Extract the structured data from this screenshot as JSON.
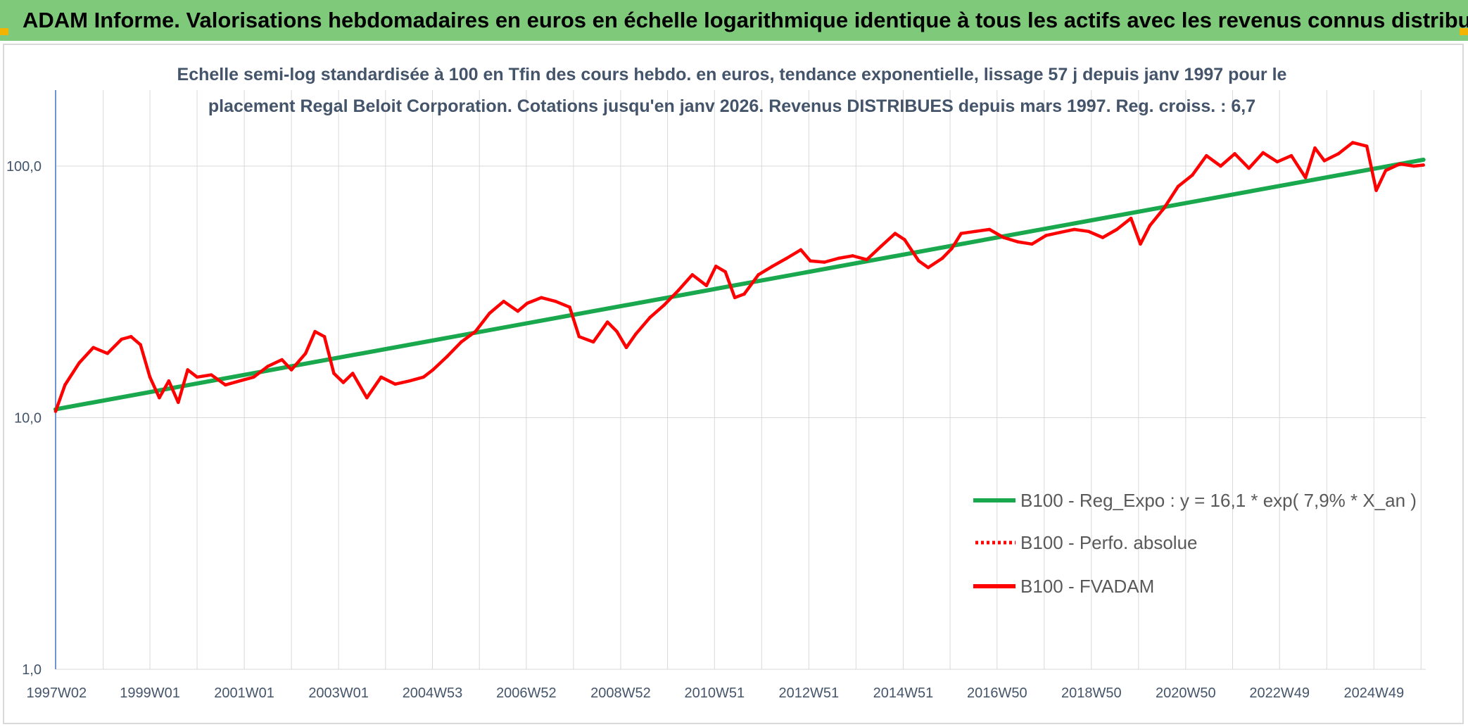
{
  "banner": {
    "title": "ADAM Informe. Valorisations hebdomadaires en euros en échelle logarithmique identique à tous les actifs avec les revenus connus distribués"
  },
  "colors": {
    "banner_bg": "#7fc97a",
    "trend": "#1aa84e",
    "series": "#ff0000",
    "grid": "#d9d9d9",
    "text": "#44546a",
    "corner": "#f2b400"
  },
  "chart_data": {
    "type": "line",
    "title": "",
    "subtitle_lines": [
      "Echelle semi-log standardisée à 100 en Tfin des cours hebdo. en euros, tendance exponentielle, lissage 57 j depuis janv 1997 pour le",
      "placement Regal Beloit Corporation. Cotations jusqu'en janv 2026. Revenus DISTRIBUES depuis mars 1997. Reg. croiss. : 6,7"
    ],
    "y_scale": "log",
    "ylim": [
      1,
      100
    ],
    "y_ticks": [
      "1,0",
      "10,0",
      "100,0"
    ],
    "y_tick_values": [
      1,
      10,
      100
    ],
    "xlim": [
      1997.0,
      2026.05
    ],
    "x_ticks": [
      "1997W02",
      "1999W01",
      "2001W01",
      "2003W01",
      "2004W53",
      "2006W52",
      "2008W52",
      "2010W51",
      "2012W51",
      "2014W51",
      "2016W50",
      "2018W50",
      "2020W50",
      "2022W49",
      "2024W49"
    ],
    "x_tick_years": [
      1997.02,
      1999.0,
      2001.0,
      2003.0,
      2004.99,
      2006.98,
      2008.98,
      2010.97,
      2012.97,
      2014.97,
      2016.96,
      2018.96,
      2020.96,
      2022.95,
      2024.95
    ],
    "legend_position": "right",
    "legend": [
      {
        "label": "B100 - Reg_Expo : y = 16,1 * exp( 7,9% *  X_an )",
        "style": "solid-green"
      },
      {
        "label": "B100 - Perfo. absolue",
        "style": "dotted-red"
      },
      {
        "label": "B100 - FVADAM",
        "style": "solid-red"
      }
    ],
    "series": [
      {
        "name": "B100 - Reg_Expo : y = 16,1 * exp( 7,9% *  X_an )",
        "x": [
          1997.0,
          2026.0
        ],
        "y": [
          10.8,
          106
        ]
      },
      {
        "name": "B100 - FVADAM",
        "x": [
          1997.0,
          1997.2,
          1997.5,
          1997.8,
          1998.1,
          1998.4,
          1998.6,
          1998.8,
          1999.0,
          1999.2,
          1999.4,
          1999.6,
          1999.8,
          2000.0,
          2000.3,
          2000.6,
          2000.9,
          2001.2,
          2001.5,
          2001.8,
          2002.0,
          2002.3,
          2002.5,
          2002.7,
          2002.9,
          2003.1,
          2003.3,
          2003.6,
          2003.9,
          2004.2,
          2004.5,
          2004.8,
          2005.0,
          2005.3,
          2005.6,
          2005.9,
          2006.2,
          2006.5,
          2006.8,
          2007.0,
          2007.3,
          2007.6,
          2007.9,
          2008.1,
          2008.4,
          2008.7,
          2008.9,
          2009.1,
          2009.3,
          2009.6,
          2009.9,
          2010.2,
          2010.5,
          2010.8,
          2011.0,
          2011.2,
          2011.4,
          2011.6,
          2011.9,
          2012.2,
          2012.5,
          2012.8,
          2013.0,
          2013.3,
          2013.6,
          2013.9,
          2014.2,
          2014.5,
          2014.8,
          2015.0,
          2015.3,
          2015.5,
          2015.8,
          2016.0,
          2016.2,
          2016.5,
          2016.8,
          2017.1,
          2017.4,
          2017.7,
          2018.0,
          2018.3,
          2018.6,
          2018.9,
          2019.2,
          2019.5,
          2019.8,
          2020.0,
          2020.2,
          2020.5,
          2020.8,
          2021.1,
          2021.4,
          2021.7,
          2022.0,
          2022.3,
          2022.6,
          2022.9,
          2023.2,
          2023.5,
          2023.7,
          2023.9,
          2024.2,
          2024.5,
          2024.8,
          2025.0,
          2025.2,
          2025.5,
          2025.8,
          2026.0
        ],
        "y": [
          10.6,
          13.5,
          16.5,
          19.0,
          18.0,
          20.5,
          21.0,
          19.5,
          14.5,
          12.0,
          14.0,
          11.5,
          15.5,
          14.5,
          14.8,
          13.5,
          14.0,
          14.5,
          16.0,
          17.0,
          15.5,
          18.0,
          22.0,
          21.0,
          15.0,
          13.8,
          15.0,
          12.0,
          14.5,
          13.6,
          14.0,
          14.5,
          15.5,
          17.5,
          20.0,
          22.0,
          26.0,
          29.0,
          26.5,
          28.5,
          30.0,
          29.0,
          27.5,
          21.0,
          20.0,
          24.0,
          22.0,
          19.0,
          21.5,
          25.0,
          28.0,
          32.0,
          37.0,
          33.5,
          40.0,
          38.0,
          30.0,
          31.0,
          37.0,
          40.0,
          43.0,
          46.5,
          42.0,
          41.5,
          43.0,
          44.0,
          42.5,
          48.0,
          54.0,
          51.0,
          42.0,
          39.5,
          43.0,
          47.0,
          54.0,
          55.0,
          56.0,
          52.0,
          50.0,
          49.0,
          53.0,
          54.5,
          56.0,
          55.0,
          52.0,
          56.0,
          62.0,
          49.0,
          58.0,
          68.0,
          83.0,
          92.0,
          110.0,
          100.0,
          112.0,
          98.0,
          113.0,
          104.0,
          110.0,
          90.0,
          118.0,
          105.0,
          112.0,
          124.0,
          120.0,
          80.0,
          96.0,
          102.0,
          100.0,
          101.0
        ]
      }
    ]
  }
}
